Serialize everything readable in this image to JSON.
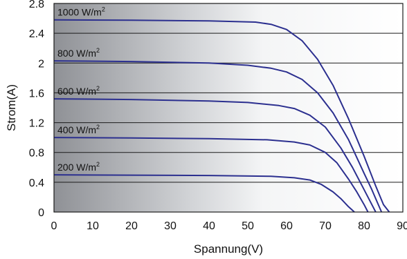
{
  "chart_data": {
    "type": "line",
    "xlabel": "Spannung(V)",
    "ylabel": "Strom(A)",
    "xlim": [
      0,
      90
    ],
    "ylim": [
      0,
      2.8
    ],
    "xticks": [
      "0",
      "10",
      "20",
      "30",
      "40",
      "50",
      "60",
      "70",
      "80",
      "90"
    ],
    "yticks": [
      "0",
      "0.4",
      "0.8",
      "1.2",
      "1.6",
      "2",
      "2.4",
      "2.8"
    ],
    "grid": "horizontal",
    "colors": {
      "line": "#2b2f8f",
      "grid": "#1a1a1a"
    },
    "series": [
      {
        "name": "1000 W/m",
        "name_sup": "2",
        "x": [
          0,
          20,
          40,
          52,
          56,
          60,
          64,
          68,
          72,
          76,
          80,
          83,
          85,
          86.5
        ],
        "y": [
          2.58,
          2.575,
          2.565,
          2.55,
          2.52,
          2.45,
          2.3,
          2.05,
          1.7,
          1.25,
          0.75,
          0.35,
          0.1,
          0
        ]
      },
      {
        "name": "800 W/m",
        "name_sup": "2",
        "x": [
          0,
          20,
          40,
          50,
          56,
          60,
          64,
          68,
          72,
          76,
          80,
          82,
          83.5,
          84.5
        ],
        "y": [
          2.03,
          2.02,
          2.0,
          1.97,
          1.93,
          1.88,
          1.78,
          1.6,
          1.33,
          0.97,
          0.52,
          0.3,
          0.12,
          0
        ]
      },
      {
        "name": "600 W/m",
        "name_sup": "2",
        "x": [
          0,
          20,
          40,
          50,
          58,
          62,
          66,
          70,
          74,
          77,
          80,
          82,
          83
        ],
        "y": [
          1.52,
          1.51,
          1.49,
          1.47,
          1.43,
          1.39,
          1.3,
          1.14,
          0.86,
          0.6,
          0.3,
          0.1,
          0
        ]
      },
      {
        "name": "400 W/m",
        "name_sup": "2",
        "x": [
          0,
          20,
          40,
          55,
          62,
          66,
          70,
          73,
          76,
          78,
          80,
          81
        ],
        "y": [
          1.0,
          0.995,
          0.985,
          0.97,
          0.94,
          0.9,
          0.8,
          0.66,
          0.44,
          0.28,
          0.1,
          0
        ]
      },
      {
        "name": "200 W/m",
        "name_sup": "2",
        "x": [
          0,
          20,
          40,
          56,
          62,
          66,
          69,
          72,
          74,
          76,
          77.5
        ],
        "y": [
          0.5,
          0.495,
          0.49,
          0.48,
          0.46,
          0.43,
          0.37,
          0.27,
          0.18,
          0.07,
          0
        ]
      }
    ]
  }
}
